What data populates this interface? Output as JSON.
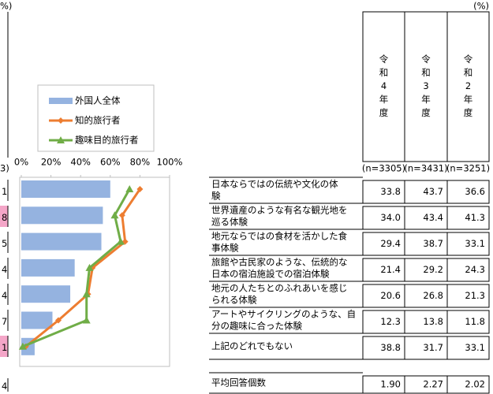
{
  "left_fragment": {
    "unit": "%)",
    "n": "3)",
    "values": [
      "1",
      "8",
      "5",
      "4",
      "4",
      "7",
      "1",
      "4"
    ],
    "highlighted": [
      false,
      true,
      false,
      false,
      false,
      false,
      true,
      false
    ],
    "highlight_color": "#f4a6c8"
  },
  "chart_data": {
    "type": "bar",
    "categories": [
      null,
      null,
      null,
      null,
      null,
      null,
      null
    ],
    "series": [
      {
        "name": "外国人全体",
        "type": "bar",
        "color": "#95b3e0",
        "values": [
          60,
          55,
          54,
          36,
          33,
          21,
          9
        ]
      },
      {
        "name": "知的旅行者",
        "type": "line",
        "color": "#ed7d31",
        "values": [
          80,
          68,
          70,
          48,
          45,
          25,
          3
        ]
      },
      {
        "name": "趣味目的旅行者",
        "type": "line",
        "color": "#70ad47",
        "values": [
          73,
          63,
          67,
          46,
          44,
          44,
          1
        ]
      }
    ],
    "xlim": [
      0,
      100
    ],
    "xticks": [
      {
        "value": 0,
        "label": "0%"
      },
      {
        "value": 20,
        "label": "20%"
      },
      {
        "value": 40,
        "label": "40%"
      },
      {
        "value": 60,
        "label": "60%"
      },
      {
        "value": 80,
        "label": "80%"
      },
      {
        "value": 100,
        "label": "100%"
      }
    ],
    "legend": "upper left"
  },
  "table": {
    "unit": "(%)",
    "columns": [
      "令和4年度",
      "令和3年度",
      "令和2年度"
    ],
    "n": [
      "(n=3305)",
      "(n=3431)",
      "(n=3251)"
    ],
    "rows": [
      {
        "label_lines": [
          "日本ならではの伝統や文化の体",
          "験"
        ],
        "values": [
          "33.8",
          "43.7",
          "36.6"
        ]
      },
      {
        "label_lines": [
          "世界遺産のような有名な観光地を",
          "巡る体験"
        ],
        "values": [
          "34.0",
          "43.4",
          "41.3"
        ]
      },
      {
        "label_lines": [
          "地元ならではの食材を活かした食",
          "事体験"
        ],
        "values": [
          "29.4",
          "38.7",
          "33.1"
        ]
      },
      {
        "label_lines": [
          "旅館や古民家のような、伝統的な",
          "日本の宿泊施設での宿泊体験"
        ],
        "values": [
          "21.4",
          "29.2",
          "24.3"
        ]
      },
      {
        "label_lines": [
          "地元の人たちとのふれあいを感じ",
          "られる体験"
        ],
        "values": [
          "20.6",
          "26.8",
          "21.3"
        ]
      },
      {
        "label_lines": [
          "アートやサイクリングのような、自",
          "分の趣味に合った体験"
        ],
        "values": [
          "12.3",
          "13.8",
          "11.8"
        ]
      },
      {
        "label_lines": [
          "上記のどれでもない"
        ],
        "values": [
          "38.8",
          "31.7",
          "33.1"
        ]
      }
    ],
    "average": {
      "label_lines": [
        "平均回答個数"
      ],
      "values": [
        "1.90",
        "2.27",
        "2.02"
      ]
    }
  }
}
